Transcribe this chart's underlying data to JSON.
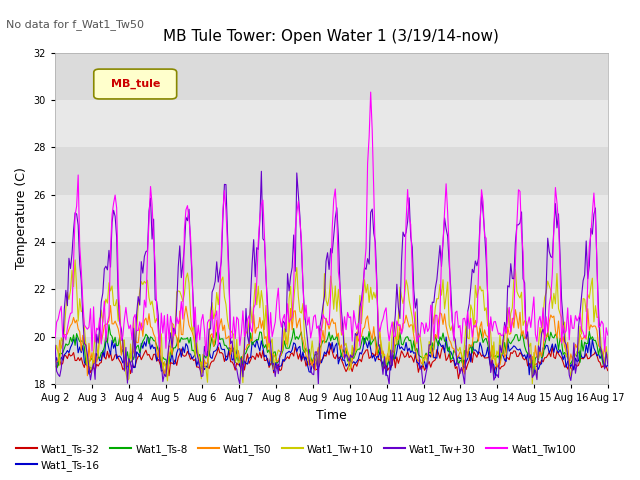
{
  "title": "MB Tule Tower: Open Water 1 (3/19/14-now)",
  "subtitle": "No data for f_Wat1_Tw50",
  "ylabel": "Temperature (C)",
  "xlabel": "Time",
  "ylim": [
    18,
    32
  ],
  "yticks": [
    18,
    20,
    22,
    24,
    26,
    28,
    30,
    32
  ],
  "date_labels": [
    "Aug 2",
    "Aug 3",
    "Aug 4",
    "Aug 5",
    "Aug 6",
    "Aug 7",
    "Aug 8",
    "Aug 9",
    "Aug 10",
    "Aug 11",
    "Aug 12",
    "Aug 13",
    "Aug 14",
    "Aug 15",
    "Aug 16",
    "Aug 17"
  ],
  "legend_label": "MB_tule",
  "series_colors": {
    "Wat1_Ts-32": "#cc0000",
    "Wat1_Ts-16": "#0000cc",
    "Wat1_Ts-8": "#00aa00",
    "Wat1_Ts0": "#ff8800",
    "Wat1_Tw+10": "#cccc00",
    "Wat1_Tw+30": "#6600cc",
    "Wat1_Tw100": "#ff00ff"
  },
  "background_color": "#ffffff",
  "plot_bg_color": "#e8e8e8",
  "band_color": "#d0d0d0"
}
